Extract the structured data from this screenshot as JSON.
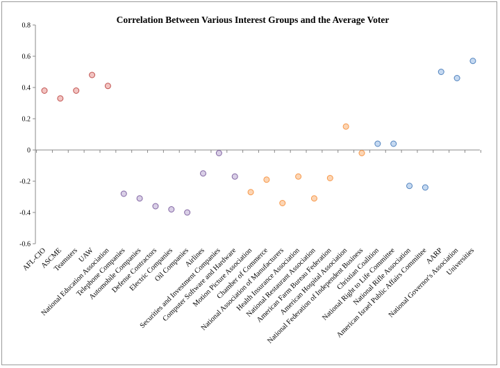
{
  "chart_data": {
    "type": "scatter",
    "title": "Correlation Between Various Interest Groups and the Average Voter",
    "xlabel": "",
    "ylabel": "",
    "ylim": [
      -0.6,
      0.8
    ],
    "yticks": [
      -0.6,
      -0.4,
      -0.2,
      0,
      0.2,
      0.4,
      0.6,
      0.8
    ],
    "ytick_labels": [
      "-0.6",
      "-0.4",
      "-0.2",
      "0",
      "0.2",
      "0.4",
      "0.6",
      "0.8"
    ],
    "grid": false,
    "legend": "none",
    "categories": [
      "AFL-CIO",
      "ASCME",
      "Teamsters",
      "UAW",
      "National Education Association",
      "Telephone Companies",
      "Automobile Companies",
      "Defense Contractors",
      "Electric Companies",
      "Oil Companies",
      "Airlines",
      "Securities and Investment Companies",
      "Computer Software and Hardware",
      "Motion Picture Association",
      "Chamber of Commerce",
      "National Association of Manufacturers",
      "Health Insurance Association",
      "National Restaurant Association",
      "American Farm Bureau Federation",
      "American Hospital Association",
      "National Federation of Independent Business",
      "Christian Coalition",
      "National Right to Life Committee",
      "National Rifle Association",
      "American Israel Public Affairs Committee",
      "AARP",
      "National Governor's Association",
      "Universities"
    ],
    "values": [
      0.38,
      0.33,
      0.38,
      0.48,
      0.41,
      -0.28,
      -0.31,
      -0.36,
      -0.38,
      -0.4,
      -0.15,
      -0.02,
      -0.17,
      -0.27,
      -0.19,
      -0.34,
      -0.17,
      -0.31,
      -0.18,
      0.15,
      -0.02,
      0.04,
      0.04,
      -0.23,
      -0.24,
      0.5,
      0.46,
      0.57
    ],
    "group_colors": {
      "red": {
        "fill": "#f2c4c2",
        "stroke": "#c0504d"
      },
      "purple": {
        "fill": "#d9cfe6",
        "stroke": "#8064a2"
      },
      "orange": {
        "fill": "#fcd5b4",
        "stroke": "#f79646"
      },
      "blue": {
        "fill": "#c5d9f1",
        "stroke": "#4f81bd"
      }
    },
    "point_groups": [
      "red",
      "red",
      "red",
      "red",
      "red",
      "purple",
      "purple",
      "purple",
      "purple",
      "purple",
      "purple",
      "purple",
      "purple",
      "orange",
      "orange",
      "orange",
      "orange",
      "orange",
      "orange",
      "orange",
      "orange",
      "blue",
      "blue",
      "blue",
      "blue",
      "blue",
      "blue",
      "blue"
    ],
    "axis_color": "#888888"
  }
}
